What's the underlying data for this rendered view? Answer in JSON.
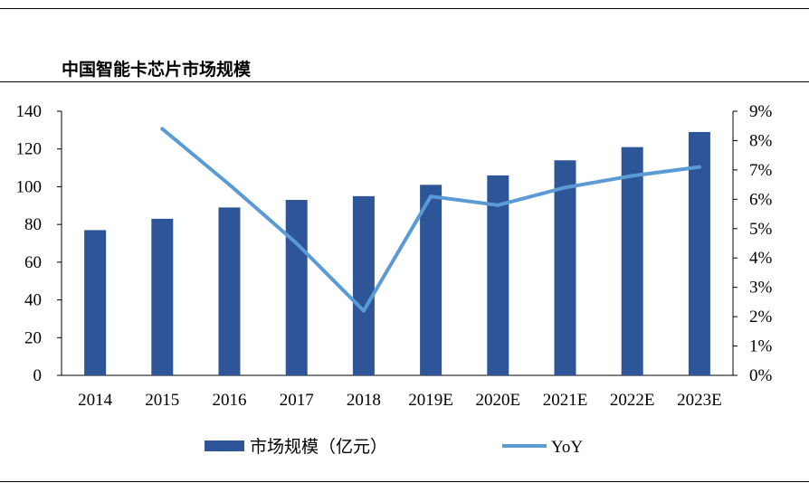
{
  "title": "中国智能卡芯片市场规模",
  "chart_data": {
    "type": "bar+line",
    "title": "中国智能卡芯片市场规模",
    "categories": [
      "2014",
      "2015",
      "2016",
      "2017",
      "2018",
      "2019E",
      "2020E",
      "2021E",
      "2022E",
      "2023E"
    ],
    "series": [
      {
        "name": "市场规模（亿元）",
        "type": "bar",
        "axis": "left",
        "color": "#2E5597",
        "values": [
          77,
          83,
          89,
          93,
          95,
          101,
          106,
          114,
          121,
          129
        ]
      },
      {
        "name": "YoY",
        "type": "line",
        "axis": "right",
        "color": "#5B9BD5",
        "values": [
          null,
          8.4,
          6.5,
          4.5,
          2.2,
          6.1,
          5.8,
          6.4,
          6.8,
          7.1
        ]
      }
    ],
    "left_axis": {
      "ylim": [
        0,
        140
      ],
      "ticks": [
        "0",
        "20",
        "40",
        "60",
        "80",
        "100",
        "120",
        "140"
      ]
    },
    "right_axis": {
      "ylim": [
        0,
        9
      ],
      "ticks": [
        "0%",
        "1%",
        "2%",
        "3%",
        "4%",
        "5%",
        "6%",
        "7%",
        "8%",
        "9%"
      ]
    },
    "legend": {
      "placement": "bottom",
      "entries": [
        "市场规模（亿元）",
        "YoY"
      ]
    },
    "grid": false
  }
}
